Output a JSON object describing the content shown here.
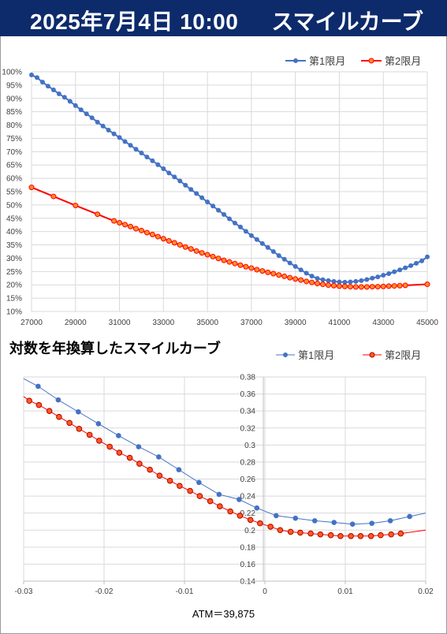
{
  "header": {
    "date": "2025年7月4日 10:00",
    "title": "スマイルカーブ"
  },
  "chart_data": [
    {
      "type": "line",
      "title": "",
      "xlim": [
        27000,
        45000
      ],
      "ylim": [
        10,
        100
      ],
      "x_ticks": [
        "27000",
        "29000",
        "31000",
        "33000",
        "35000",
        "37000",
        "39000",
        "41000",
        "43000",
        "45000"
      ],
      "y_ticks": [
        "10%",
        "15%",
        "20%",
        "25%",
        "30%",
        "35%",
        "40%",
        "45%",
        "50%",
        "55%",
        "60%",
        "65%",
        "70%",
        "75%",
        "80%",
        "85%",
        "90%",
        "95%",
        "100%"
      ],
      "grid": true,
      "legend": "top-right",
      "series": [
        {
          "name": "第1限月",
          "color": "#4472c4",
          "x": [
            27000,
            27250,
            27500,
            27750,
            28000,
            28250,
            28500,
            28750,
            29000,
            29250,
            29500,
            29750,
            30000,
            30250,
            30500,
            30750,
            31000,
            31250,
            31500,
            31750,
            32000,
            32250,
            32500,
            32750,
            33000,
            33250,
            33500,
            33750,
            34000,
            34250,
            34500,
            34750,
            35000,
            35250,
            35500,
            35750,
            36000,
            36250,
            36500,
            36750,
            37000,
            37250,
            37500,
            37750,
            38000,
            38250,
            38500,
            38750,
            39000,
            39250,
            39500,
            39750,
            40000,
            40250,
            40500,
            40750,
            41000,
            41250,
            41500,
            41750,
            42000,
            42250,
            42500,
            42750,
            43000,
            43250,
            43500,
            43750,
            44000,
            44250,
            44500,
            44750,
            45000
          ],
          "y": [
            98.8,
            97.8,
            96.1,
            94.6,
            93.2,
            91.7,
            90.4,
            88.9,
            87.3,
            85.7,
            84.2,
            82.7,
            81.1,
            79.6,
            78.1,
            76.7,
            75.3,
            73.8,
            72.4,
            70.9,
            69.5,
            68.0,
            66.6,
            65.1,
            63.6,
            62.0,
            60.5,
            59.0,
            57.4,
            55.8,
            54.3,
            52.7,
            51.1,
            49.6,
            48.0,
            46.4,
            44.8,
            43.2,
            41.7,
            40.1,
            38.5,
            37.0,
            35.5,
            34.0,
            32.5,
            31.0,
            29.6,
            28.2,
            26.9,
            25.6,
            24.4,
            23.3,
            22.4,
            21.9,
            21.6,
            21.3,
            21.1,
            21.0,
            21.1,
            21.3,
            21.6,
            22.0,
            22.5,
            23.0,
            23.6,
            24.2,
            24.9,
            25.6,
            26.4,
            27.2,
            28.1,
            29.0,
            30.5
          ]
        },
        {
          "name": "第2限月",
          "color": "#ff0000",
          "x": [
            27000,
            28000,
            29000,
            30000,
            30750,
            31000,
            31250,
            31500,
            31750,
            32000,
            32250,
            32500,
            32750,
            33000,
            33250,
            33500,
            33750,
            34000,
            34250,
            34500,
            34750,
            35000,
            35250,
            35500,
            35750,
            36000,
            36250,
            36500,
            36750,
            37000,
            37250,
            37500,
            37750,
            38000,
            38250,
            38500,
            38750,
            39000,
            39250,
            39500,
            39750,
            40000,
            40250,
            40500,
            40750,
            41000,
            41250,
            41500,
            41750,
            42000,
            42250,
            42500,
            42750,
            43000,
            43250,
            43500,
            43750,
            44000,
            45000
          ],
          "y": [
            56.6,
            53.2,
            49.8,
            46.5,
            44.0,
            43.3,
            42.6,
            41.9,
            41.1,
            40.4,
            39.6,
            38.9,
            38.1,
            37.3,
            36.5,
            35.8,
            35.0,
            34.2,
            33.5,
            32.7,
            32.0,
            31.3,
            30.6,
            29.9,
            29.2,
            28.6,
            28.0,
            27.4,
            26.8,
            26.3,
            25.7,
            25.2,
            24.7,
            24.2,
            23.7,
            23.2,
            22.7,
            22.2,
            21.8,
            21.3,
            20.9,
            20.5,
            20.2,
            19.9,
            19.7,
            19.5,
            19.4,
            19.3,
            19.2,
            19.2,
            19.2,
            19.3,
            19.3,
            19.4,
            19.5,
            19.6,
            19.7,
            19.8,
            20.2
          ]
        }
      ]
    },
    {
      "type": "line",
      "title": "対数を年換算したスマイルカーブ",
      "xlim": [
        -0.03,
        0.02
      ],
      "ylim": [
        0.14,
        0.38
      ],
      "x_ticks": [
        "-0.03",
        "-0.02",
        "-0.01",
        "0",
        "0.01",
        "0.02"
      ],
      "y_ticks": [
        "0.14",
        "0.16",
        "0.18",
        "0.2",
        "0.22",
        "0.24",
        "0.26",
        "0.28",
        "0.3",
        "0.32",
        "0.34",
        "0.36",
        "0.38"
      ],
      "grid": true,
      "legend": "top-right",
      "annotation": "ATM＝39,875",
      "series": [
        {
          "name": "第1限月",
          "color": "#4472c4",
          "markers_x": [
            -0.0282,
            -0.0257,
            -0.0232,
            -0.0207,
            -0.0182,
            -0.0157,
            -0.0132,
            -0.0107,
            -0.0082,
            -0.0057,
            -0.0032,
            -0.001,
            0.0014,
            0.0038,
            0.0062,
            0.0086,
            0.0109,
            0.0133,
            0.0156,
            0.018
          ],
          "markers_y": [
            0.369,
            0.353,
            0.339,
            0.325,
            0.311,
            0.298,
            0.286,
            0.271,
            0.256,
            0.242,
            0.236,
            0.226,
            0.217,
            0.214,
            0.211,
            0.209,
            0.207,
            0.208,
            0.211,
            0.216
          ],
          "line_x": [
            -0.03,
            -0.0282,
            -0.0257,
            -0.0232,
            -0.0207,
            -0.0182,
            -0.0157,
            -0.0132,
            -0.0107,
            -0.0082,
            -0.0057,
            -0.0032,
            -0.001,
            0.0014,
            0.0038,
            0.0062,
            0.0086,
            0.0109,
            0.0133,
            0.0156,
            0.018,
            0.02
          ],
          "line_y": [
            0.378,
            0.369,
            0.353,
            0.339,
            0.325,
            0.311,
            0.298,
            0.286,
            0.271,
            0.256,
            0.242,
            0.236,
            0.226,
            0.217,
            0.214,
            0.211,
            0.209,
            0.207,
            0.208,
            0.211,
            0.216,
            0.22
          ]
        },
        {
          "name": "第2限月",
          "color": "#ff0000",
          "markers_x": [
            -0.0293,
            -0.0281,
            -0.0268,
            -0.0256,
            -0.0243,
            -0.0231,
            -0.0218,
            -0.0206,
            -0.0193,
            -0.0181,
            -0.0168,
            -0.0156,
            -0.0143,
            -0.0131,
            -0.0118,
            -0.0106,
            -0.0093,
            -0.0081,
            -0.0068,
            -0.0056,
            -0.0043,
            -0.0031,
            -0.0018,
            -0.0006,
            0.0007,
            0.0019,
            0.0032,
            0.0044,
            0.0057,
            0.0069,
            0.0082,
            0.0094,
            0.0107,
            0.0119,
            0.0132,
            0.0144,
            0.0157,
            0.0169
          ],
          "markers_y": [
            0.352,
            0.347,
            0.34,
            0.333,
            0.326,
            0.319,
            0.312,
            0.305,
            0.298,
            0.291,
            0.285,
            0.278,
            0.271,
            0.264,
            0.258,
            0.252,
            0.246,
            0.24,
            0.234,
            0.228,
            0.222,
            0.217,
            0.212,
            0.208,
            0.204,
            0.2,
            0.198,
            0.197,
            0.196,
            0.195,
            0.194,
            0.193,
            0.193,
            0.193,
            0.193,
            0.194,
            0.195,
            0.196
          ],
          "line_x": [
            -0.03,
            -0.0293,
            -0.0281,
            -0.0268,
            -0.0256,
            -0.0243,
            -0.0231,
            -0.0218,
            -0.0206,
            -0.0193,
            -0.0181,
            -0.0168,
            -0.0156,
            -0.0143,
            -0.0131,
            -0.0118,
            -0.0106,
            -0.0093,
            -0.0081,
            -0.0068,
            -0.0056,
            -0.0043,
            -0.0031,
            -0.0018,
            -0.0006,
            0.0007,
            0.0019,
            0.0032,
            0.0044,
            0.0057,
            0.0069,
            0.0082,
            0.0094,
            0.0107,
            0.0119,
            0.0132,
            0.0144,
            0.0157,
            0.0169,
            0.02
          ],
          "line_y": [
            0.357,
            0.352,
            0.347,
            0.34,
            0.333,
            0.326,
            0.319,
            0.312,
            0.305,
            0.298,
            0.291,
            0.285,
            0.278,
            0.271,
            0.264,
            0.258,
            0.252,
            0.246,
            0.24,
            0.234,
            0.228,
            0.222,
            0.217,
            0.212,
            0.208,
            0.204,
            0.2,
            0.198,
            0.197,
            0.196,
            0.195,
            0.194,
            0.193,
            0.193,
            0.193,
            0.193,
            0.194,
            0.195,
            0.196,
            0.2
          ]
        }
      ]
    }
  ]
}
